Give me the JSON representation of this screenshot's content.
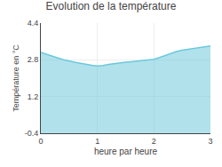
{
  "chart_data": {
    "type": "area",
    "title": "Evolution de la température",
    "xlabel": "heure par heure",
    "ylabel": "Température en °C",
    "x": [
      0,
      0.1,
      0.2,
      0.3,
      0.4,
      0.5,
      0.6,
      0.7,
      0.8,
      0.9,
      1.0,
      1.1,
      1.2,
      1.3,
      1.4,
      1.5,
      1.6,
      1.7,
      1.8,
      1.9,
      2.0,
      2.1,
      2.2,
      2.3,
      2.4,
      2.5,
      2.6,
      2.7,
      2.8,
      2.9,
      3.0
    ],
    "values": [
      3.12,
      3.05,
      2.97,
      2.88,
      2.8,
      2.74,
      2.7,
      2.65,
      2.6,
      2.56,
      2.53,
      2.55,
      2.6,
      2.64,
      2.67,
      2.7,
      2.72,
      2.74,
      2.77,
      2.79,
      2.82,
      2.9,
      2.99,
      3.08,
      3.16,
      3.22,
      3.26,
      3.3,
      3.33,
      3.36,
      3.4
    ],
    "color": "#6CC8DC",
    "xlim": [
      0,
      3
    ],
    "ylim": [
      -0.4,
      4.4
    ],
    "xticks": [
      0,
      1,
      2,
      3
    ],
    "yticks": [
      -0.4,
      1.2,
      2.8,
      4.4
    ],
    "grid": true
  }
}
